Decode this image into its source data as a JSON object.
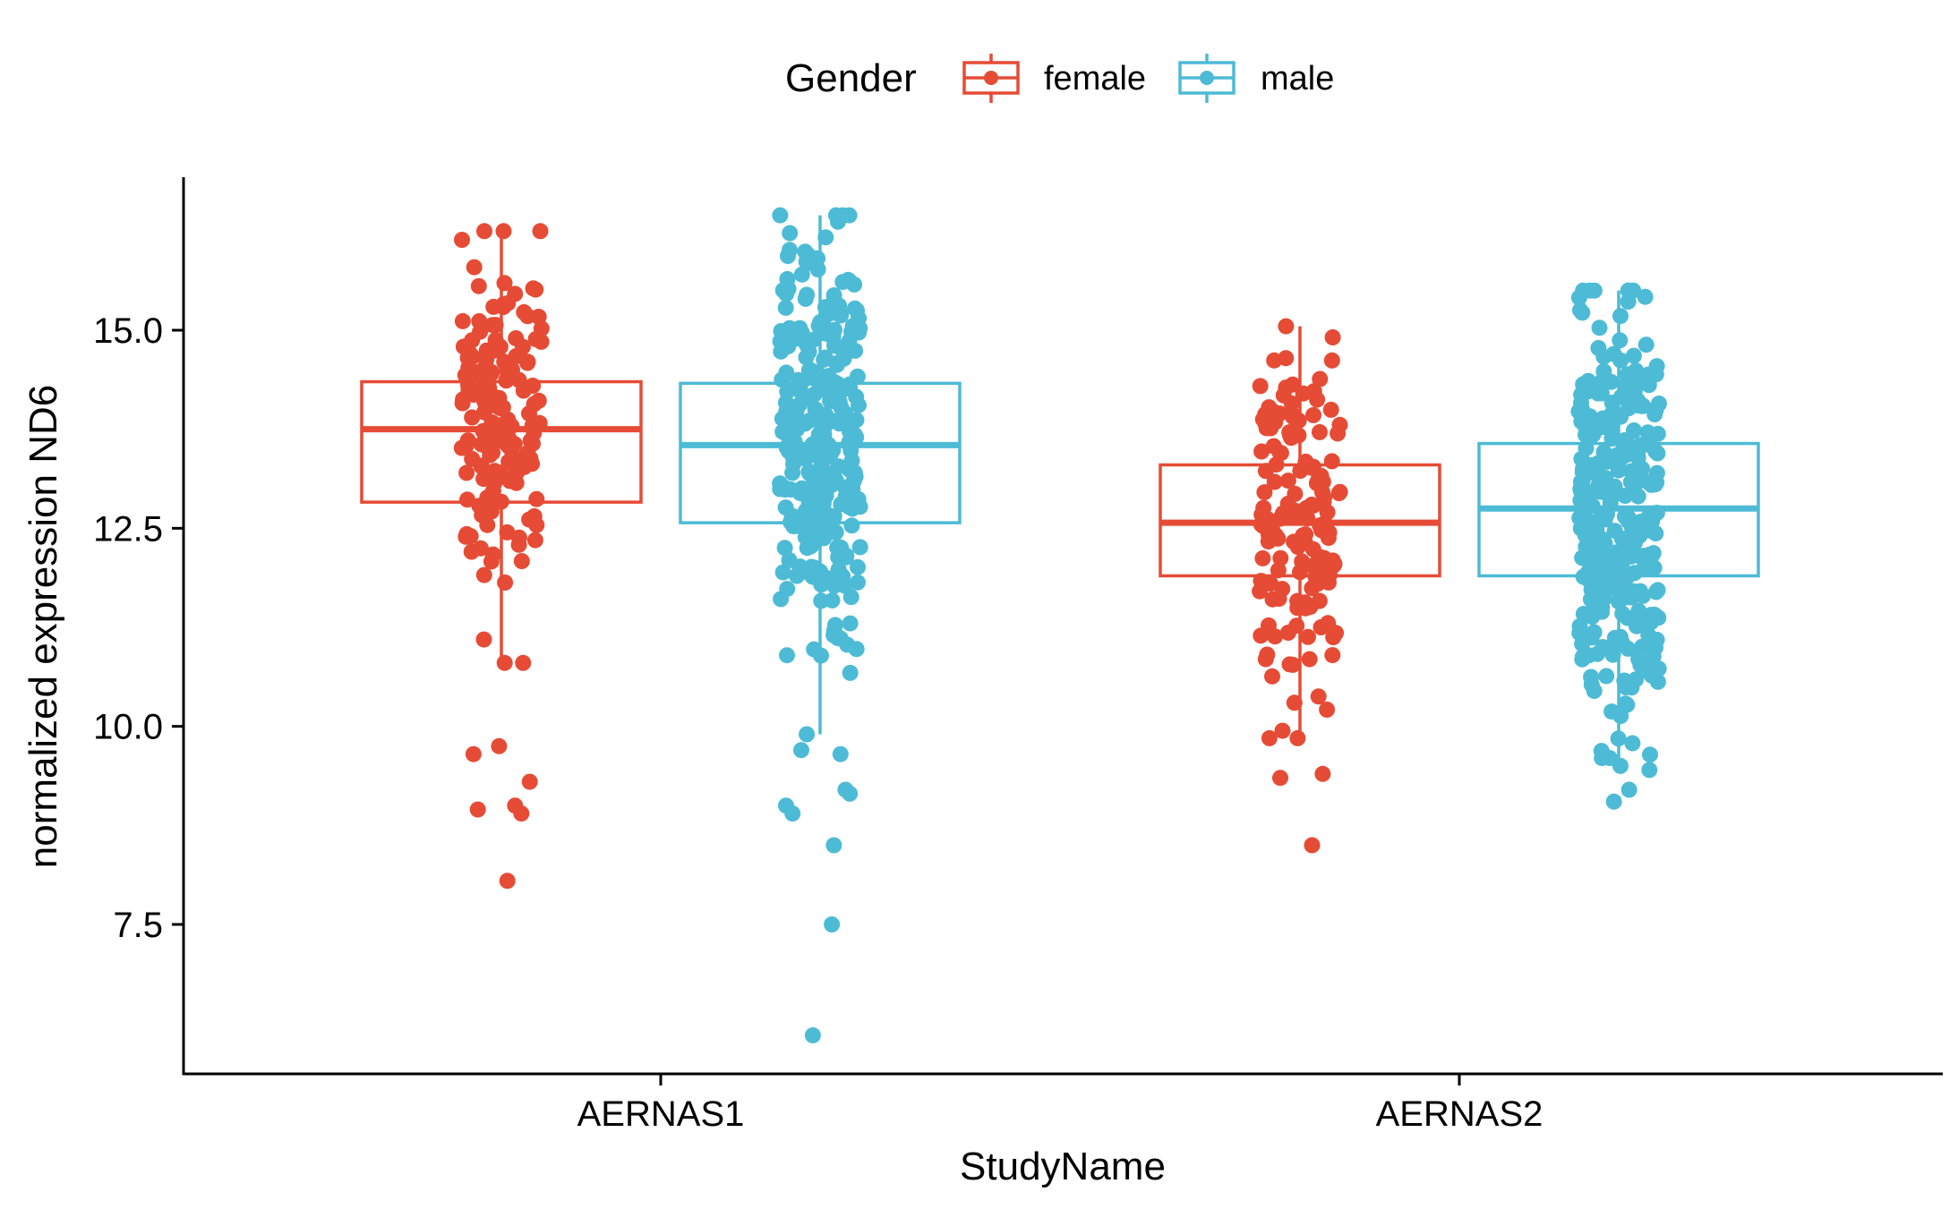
{
  "chart_data": {
    "type": "box-jitter",
    "title": "",
    "xlabel": "StudyName",
    "ylabel": "normalized expression ND6",
    "categories": [
      "AERNAS1",
      "AERNAS2"
    ],
    "ylim": [
      5.7,
      16.7
    ],
    "yticks": [
      7.5,
      10.0,
      12.5,
      15.0
    ],
    "ytick_labels": [
      "7.5",
      "10.0",
      "12.5",
      "15.0"
    ],
    "grid": false,
    "legend": {
      "title": "Gender",
      "position": "top",
      "entries": [
        {
          "label": "female",
          "color": "#E64B35"
        },
        {
          "label": "male",
          "color": "#4DBBD5"
        }
      ]
    },
    "series": [
      {
        "name": "female",
        "color": "#E64B35",
        "boxes": [
          {
            "category": "AERNAS1",
            "min": 10.8,
            "q1": 12.83,
            "median": 13.75,
            "q3": 14.35,
            "max": 16.25
          },
          {
            "category": "AERNAS2",
            "min": 9.85,
            "q1": 11.9,
            "median": 12.57,
            "q3": 13.3,
            "max": 15.05
          }
        ],
        "outliers": [
          {
            "category": "AERNAS1",
            "values": [
              8.05,
              8.9,
              8.95,
              9.0,
              9.3,
              9.65,
              9.75
            ]
          },
          {
            "category": "AERNAS2",
            "values": [
              8.5,
              9.35,
              9.4
            ]
          }
        ]
      },
      {
        "name": "male",
        "color": "#4DBBD5",
        "boxes": [
          {
            "category": "AERNAS1",
            "min": 9.9,
            "q1": 12.57,
            "median": 13.55,
            "q3": 14.33,
            "max": 16.45
          },
          {
            "category": "AERNAS2",
            "min": 9.6,
            "q1": 11.9,
            "median": 12.75,
            "q3": 13.57,
            "max": 15.5
          }
        ],
        "outliers": [
          {
            "category": "AERNAS1",
            "values": [
              6.1,
              7.5,
              8.5,
              8.9,
              9.0,
              9.15,
              9.2,
              9.65,
              9.7
            ]
          },
          {
            "category": "AERNAS2",
            "values": [
              9.05,
              9.2,
              9.45,
              9.5,
              9.6
            ]
          }
        ]
      }
    ]
  }
}
